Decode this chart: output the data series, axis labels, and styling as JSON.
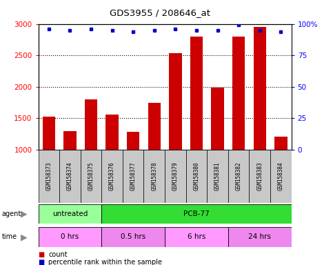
{
  "title": "GDS3955 / 208646_at",
  "samples": [
    "GSM158373",
    "GSM158374",
    "GSM158375",
    "GSM158376",
    "GSM158377",
    "GSM158378",
    "GSM158379",
    "GSM158380",
    "GSM158381",
    "GSM158382",
    "GSM158383",
    "GSM158384"
  ],
  "counts": [
    1530,
    1300,
    1800,
    1560,
    1290,
    1740,
    2540,
    2800,
    1990,
    2800,
    2950,
    1210
  ],
  "percentile_ranks": [
    96,
    95,
    96,
    95,
    94,
    95,
    96,
    95,
    95,
    99,
    95,
    94
  ],
  "bar_color": "#cc0000",
  "dot_color": "#0000cc",
  "ylim_left": [
    1000,
    3000
  ],
  "ylim_right": [
    0,
    100
  ],
  "yticks_left": [
    1000,
    1500,
    2000,
    2500,
    3000
  ],
  "yticks_right": [
    0,
    25,
    50,
    75,
    100
  ],
  "agent_labels": [
    {
      "label": "untreated",
      "start": 0,
      "end": 3,
      "color": "#99ff99"
    },
    {
      "label": "PCB-77",
      "start": 3,
      "end": 12,
      "color": "#33dd33"
    }
  ],
  "time_labels": [
    {
      "label": "0 hrs",
      "start": 0,
      "end": 3,
      "color": "#ff99ff"
    },
    {
      "label": "0.5 hrs",
      "start": 3,
      "end": 6,
      "color": "#ee88ee"
    },
    {
      "label": "6 hrs",
      "start": 6,
      "end": 9,
      "color": "#ff99ff"
    },
    {
      "label": "24 hrs",
      "start": 9,
      "end": 12,
      "color": "#ee88ee"
    }
  ],
  "legend_count_color": "#cc0000",
  "legend_dot_color": "#0000cc",
  "bg_color": "#ffffff",
  "sample_box_color": "#c8c8c8"
}
